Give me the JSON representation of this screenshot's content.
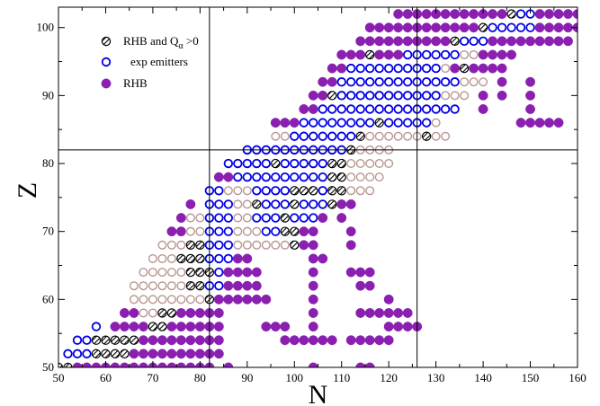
{
  "chart_data": {
    "type": "scatter",
    "title": "",
    "xlabel": "N",
    "ylabel": "Z",
    "xlim": [
      50,
      160
    ],
    "ylim": [
      50,
      103
    ],
    "xticks": [
      50,
      60,
      70,
      80,
      90,
      100,
      110,
      120,
      130,
      140,
      150,
      160
    ],
    "yticks": [
      50,
      60,
      70,
      80,
      90,
      100
    ],
    "grid": false,
    "reference_lines": {
      "N": [
        82,
        126
      ],
      "Z": [
        82
      ]
    },
    "legend": {
      "placement": "top-left",
      "entries": [
        {
          "label_main": "RHB and Q",
          "label_sub": "α",
          "label_tail": " >0",
          "marker": "hatched"
        },
        {
          "label_main": "exp emitters",
          "marker": "open-blue"
        },
        {
          "label_main": "RHB",
          "marker": "filled-purple"
        }
      ]
    },
    "marker_colors": {
      "filled": "#8a1fb0",
      "open_blue": "#0000e6",
      "open_pink": "#b8968f",
      "hatched_stroke": "#000000"
    },
    "rows": [
      {
        "z": 50,
        "segments": [
          {
            "type": "hatched",
            "from": 50,
            "to": 52
          },
          {
            "type": "filled",
            "from": 54,
            "to": 82
          },
          {
            "type": "filled",
            "from": 86,
            "to": 86
          },
          {
            "type": "filled",
            "from": 104,
            "to": 104
          },
          {
            "type": "filled",
            "from": 114,
            "to": 116
          }
        ]
      },
      {
        "z": 52,
        "segments": [
          {
            "type": "blue",
            "from": 52,
            "to": 56
          },
          {
            "type": "hatched",
            "from": 58,
            "to": 64
          },
          {
            "type": "filled",
            "from": 66,
            "to": 84
          }
        ]
      },
      {
        "z": 54,
        "segments": [
          {
            "type": "blue",
            "from": 54,
            "to": 56
          },
          {
            "type": "hatched",
            "from": 58,
            "to": 66
          },
          {
            "type": "filled",
            "from": 68,
            "to": 84
          },
          {
            "type": "filled",
            "from": 98,
            "to": 104
          },
          {
            "type": "filled",
            "from": 106,
            "to": 108
          },
          {
            "type": "filled",
            "from": 112,
            "to": 120
          }
        ]
      },
      {
        "z": 56,
        "segments": [
          {
            "type": "blue",
            "from": 58,
            "to": 58
          },
          {
            "type": "filled",
            "from": 62,
            "to": 68
          },
          {
            "type": "hatched",
            "from": 70,
            "to": 72
          },
          {
            "type": "filled",
            "from": 74,
            "to": 84
          },
          {
            "type": "filled",
            "from": 94,
            "to": 98
          },
          {
            "type": "filled",
            "from": 104,
            "to": 104
          },
          {
            "type": "filled",
            "from": 120,
            "to": 126
          }
        ]
      },
      {
        "z": 58,
        "segments": [
          {
            "type": "filled",
            "from": 64,
            "to": 66
          },
          {
            "type": "pink",
            "from": 68,
            "to": 70
          },
          {
            "type": "hatched",
            "from": 72,
            "to": 74
          },
          {
            "type": "filled",
            "from": 76,
            "to": 84
          },
          {
            "type": "filled",
            "from": 104,
            "to": 104
          },
          {
            "type": "filled",
            "from": 114,
            "to": 124
          }
        ]
      },
      {
        "z": 60,
        "segments": [
          {
            "type": "pink",
            "from": 66,
            "to": 80
          },
          {
            "type": "hatched",
            "from": 82,
            "to": 82
          },
          {
            "type": "filled",
            "from": 84,
            "to": 84
          },
          {
            "type": "filled",
            "from": 86,
            "to": 94
          },
          {
            "type": "filled",
            "from": 104,
            "to": 104
          },
          {
            "type": "filled",
            "from": 120,
            "to": 120
          }
        ]
      },
      {
        "z": 62,
        "segments": [
          {
            "type": "pink",
            "from": 66,
            "to": 76
          },
          {
            "type": "hatched",
            "from": 78,
            "to": 80
          },
          {
            "type": "blue",
            "from": 82,
            "to": 84
          },
          {
            "type": "filled",
            "from": 86,
            "to": 92
          },
          {
            "type": "filled",
            "from": 104,
            "to": 104
          },
          {
            "type": "filled",
            "from": 114,
            "to": 116
          }
        ]
      },
      {
        "z": 64,
        "segments": [
          {
            "type": "pink",
            "from": 68,
            "to": 76
          },
          {
            "type": "hatched",
            "from": 78,
            "to": 82
          },
          {
            "type": "blue",
            "from": 84,
            "to": 84
          },
          {
            "type": "filled",
            "from": 86,
            "to": 92
          },
          {
            "type": "filled",
            "from": 104,
            "to": 104
          },
          {
            "type": "filled",
            "from": 112,
            "to": 116
          }
        ]
      },
      {
        "z": 66,
        "segments": [
          {
            "type": "pink",
            "from": 70,
            "to": 74
          },
          {
            "type": "hatched",
            "from": 76,
            "to": 80
          },
          {
            "type": "blue",
            "from": 82,
            "to": 86
          },
          {
            "type": "filled",
            "from": 88,
            "to": 90
          },
          {
            "type": "filled",
            "from": 104,
            "to": 106
          }
        ]
      },
      {
        "z": 68,
        "segments": [
          {
            "type": "pink",
            "from": 72,
            "to": 76
          },
          {
            "type": "hatched",
            "from": 78,
            "to": 80
          },
          {
            "type": "blue",
            "from": 82,
            "to": 86
          },
          {
            "type": "pink",
            "from": 88,
            "to": 98
          },
          {
            "type": "hatched",
            "from": 100,
            "to": 100
          },
          {
            "type": "filled",
            "from": 102,
            "to": 104
          },
          {
            "type": "filled",
            "from": 112,
            "to": 112
          }
        ]
      },
      {
        "z": 70,
        "segments": [
          {
            "type": "filled",
            "from": 74,
            "to": 76
          },
          {
            "type": "pink",
            "from": 78,
            "to": 80
          },
          {
            "type": "blue",
            "from": 82,
            "to": 86
          },
          {
            "type": "pink",
            "from": 88,
            "to": 92
          },
          {
            "type": "blue",
            "from": 94,
            "to": 96
          },
          {
            "type": "hatched",
            "from": 98,
            "to": 100
          },
          {
            "type": "filled",
            "from": 102,
            "to": 104
          },
          {
            "type": "filled",
            "from": 112,
            "to": 112
          }
        ]
      },
      {
        "z": 72,
        "segments": [
          {
            "type": "filled",
            "from": 76,
            "to": 76
          },
          {
            "type": "pink",
            "from": 78,
            "to": 80
          },
          {
            "type": "blue",
            "from": 82,
            "to": 86
          },
          {
            "type": "pink",
            "from": 88,
            "to": 90
          },
          {
            "type": "blue",
            "from": 92,
            "to": 96
          },
          {
            "type": "hatched",
            "from": 98,
            "to": 98
          },
          {
            "type": "blue",
            "from": 100,
            "to": 104
          },
          {
            "type": "filled",
            "from": 106,
            "to": 106
          },
          {
            "type": "filled",
            "from": 110,
            "to": 110
          }
        ]
      },
      {
        "z": 74,
        "segments": [
          {
            "type": "filled",
            "from": 78,
            "to": 78
          },
          {
            "type": "blue",
            "from": 82,
            "to": 86
          },
          {
            "type": "pink",
            "from": 88,
            "to": 90
          },
          {
            "type": "hatched",
            "from": 92,
            "to": 92
          },
          {
            "type": "blue",
            "from": 94,
            "to": 98
          },
          {
            "type": "hatched",
            "from": 100,
            "to": 100
          },
          {
            "type": "blue",
            "from": 102,
            "to": 106
          },
          {
            "type": "hatched",
            "from": 108,
            "to": 108
          },
          {
            "type": "filled",
            "from": 110,
            "to": 112
          }
        ]
      },
      {
        "z": 76,
        "segments": [
          {
            "type": "blue",
            "from": 82,
            "to": 84
          },
          {
            "type": "pink",
            "from": 86,
            "to": 90
          },
          {
            "type": "blue",
            "from": 92,
            "to": 98
          },
          {
            "type": "hatched",
            "from": 100,
            "to": 104
          },
          {
            "type": "blue",
            "from": 106,
            "to": 106
          },
          {
            "type": "hatched",
            "from": 108,
            "to": 110
          },
          {
            "type": "pink",
            "from": 112,
            "to": 116
          }
        ]
      },
      {
        "z": 78,
        "segments": [
          {
            "type": "filled",
            "from": 84,
            "to": 86
          },
          {
            "type": "blue",
            "from": 88,
            "to": 106
          },
          {
            "type": "hatched",
            "from": 108,
            "to": 110
          },
          {
            "type": "pink",
            "from": 112,
            "to": 118
          }
        ]
      },
      {
        "z": 80,
        "segments": [
          {
            "type": "blue",
            "from": 86,
            "to": 94
          },
          {
            "type": "hatched",
            "from": 96,
            "to": 96
          },
          {
            "type": "blue",
            "from": 98,
            "to": 106
          },
          {
            "type": "hatched",
            "from": 108,
            "to": 110
          },
          {
            "type": "pink",
            "from": 112,
            "to": 120
          }
        ]
      },
      {
        "z": 82,
        "segments": [
          {
            "type": "blue",
            "from": 90,
            "to": 110
          },
          {
            "type": "hatched",
            "from": 112,
            "to": 112
          },
          {
            "type": "pink",
            "from": 114,
            "to": 120
          }
        ]
      },
      {
        "z": 84,
        "segments": [
          {
            "type": "pink",
            "from": 96,
            "to": 98
          },
          {
            "type": "blue",
            "from": 100,
            "to": 112
          },
          {
            "type": "hatched",
            "from": 114,
            "to": 114
          },
          {
            "type": "pink",
            "from": 116,
            "to": 126
          },
          {
            "type": "hatched",
            "from": 128,
            "to": 128
          },
          {
            "type": "pink",
            "from": 130,
            "to": 132
          }
        ]
      }
    ],
    "rows_upper": [
      {
        "z": 86,
        "segments": [
          {
            "type": "filled",
            "from": 96,
            "to": 100
          },
          {
            "type": "blue",
            "from": 102,
            "to": 116
          },
          {
            "type": "hatched",
            "from": 118,
            "to": 118
          },
          {
            "type": "blue",
            "from": 120,
            "to": 128
          },
          {
            "type": "pink",
            "from": 130,
            "to": 130
          },
          {
            "type": "filled",
            "from": 148,
            "to": 148
          },
          {
            "type": "filled",
            "from": 150,
            "to": 156
          }
        ]
      },
      {
        "z": 88,
        "segments": [
          {
            "type": "filled",
            "from": 102,
            "to": 104
          },
          {
            "type": "blue",
            "from": 106,
            "to": 134
          },
          {
            "type": "filled",
            "from": 140,
            "to": 140
          },
          {
            "type": "filled",
            "from": 150,
            "to": 150
          }
        ]
      },
      {
        "z": 90,
        "segments": [
          {
            "type": "filled",
            "from": 104,
            "to": 106
          },
          {
            "type": "hatched",
            "from": 108,
            "to": 108
          },
          {
            "type": "blue",
            "from": 110,
            "to": 130
          },
          {
            "type": "pink",
            "from": 132,
            "to": 136
          },
          {
            "type": "filled",
            "from": 140,
            "to": 140
          },
          {
            "type": "filled",
            "from": 144,
            "to": 144
          },
          {
            "type": "filled",
            "from": 150,
            "to": 150
          }
        ]
      },
      {
        "z": 92,
        "segments": [
          {
            "type": "filled",
            "from": 106,
            "to": 108
          },
          {
            "type": "blue",
            "from": 110,
            "to": 134
          },
          {
            "type": "pink",
            "from": 136,
            "to": 140
          },
          {
            "type": "filled",
            "from": 144,
            "to": 144
          },
          {
            "type": "filled",
            "from": 150,
            "to": 150
          }
        ]
      },
      {
        "z": 94,
        "segments": [
          {
            "type": "filled",
            "from": 108,
            "to": 110
          },
          {
            "type": "blue",
            "from": 112,
            "to": 130
          },
          {
            "type": "pink",
            "from": 132,
            "to": 132
          },
          {
            "type": "filled",
            "from": 134,
            "to": 134
          },
          {
            "type": "hatched",
            "from": 136,
            "to": 136
          },
          {
            "type": "filled",
            "from": 138,
            "to": 140
          },
          {
            "type": "filled",
            "from": 142,
            "to": 144
          }
        ]
      },
      {
        "z": 96,
        "segments": [
          {
            "type": "filled",
            "from": 110,
            "to": 114
          },
          {
            "type": "hatched",
            "from": 116,
            "to": 116
          },
          {
            "type": "filled",
            "from": 118,
            "to": 118
          },
          {
            "type": "filled",
            "from": 120,
            "to": 122
          },
          {
            "type": "blue",
            "from": 124,
            "to": 134
          },
          {
            "type": "pink",
            "from": 136,
            "to": 138
          },
          {
            "type": "filled",
            "from": 140,
            "to": 142
          },
          {
            "type": "filled",
            "from": 144,
            "to": 146
          }
        ]
      },
      {
        "z": 98,
        "segments": [
          {
            "type": "filled",
            "from": 114,
            "to": 118
          },
          {
            "type": "filled",
            "from": 120,
            "to": 132
          },
          {
            "type": "hatched",
            "from": 134,
            "to": 134
          },
          {
            "type": "blue",
            "from": 136,
            "to": 140
          },
          {
            "type": "filled",
            "from": 142,
            "to": 150
          },
          {
            "type": "filled",
            "from": 152,
            "to": 158
          }
        ]
      },
      {
        "z": 100,
        "segments": [
          {
            "type": "filled",
            "from": 116,
            "to": 138
          },
          {
            "type": "hatched",
            "from": 140,
            "to": 140
          },
          {
            "type": "blue",
            "from": 142,
            "to": 150
          },
          {
            "type": "filled",
            "from": 152,
            "to": 160
          }
        ]
      },
      {
        "z": 102,
        "segments": [
          {
            "type": "filled",
            "from": 122,
            "to": 144
          },
          {
            "type": "hatched",
            "from": 146,
            "to": 146
          },
          {
            "type": "blue",
            "from": 148,
            "to": 150
          },
          {
            "type": "filled",
            "from": 152,
            "to": 160
          }
        ]
      }
    ]
  }
}
